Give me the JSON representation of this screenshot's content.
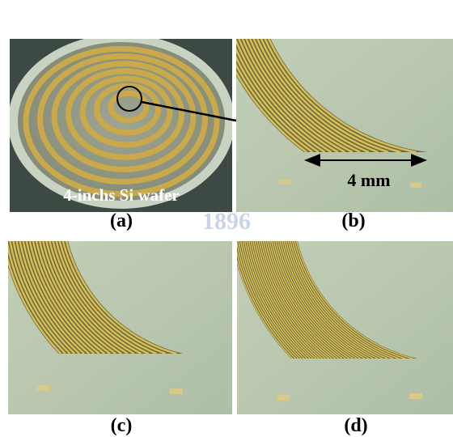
{
  "watermark": "1896",
  "panels": [
    {
      "label": "(a)",
      "annotation": "4-inchs Si wafer"
    },
    {
      "label": "(b)",
      "annotation": "4 mm"
    },
    {
      "label": "(c)"
    },
    {
      "label": "(d)"
    }
  ]
}
